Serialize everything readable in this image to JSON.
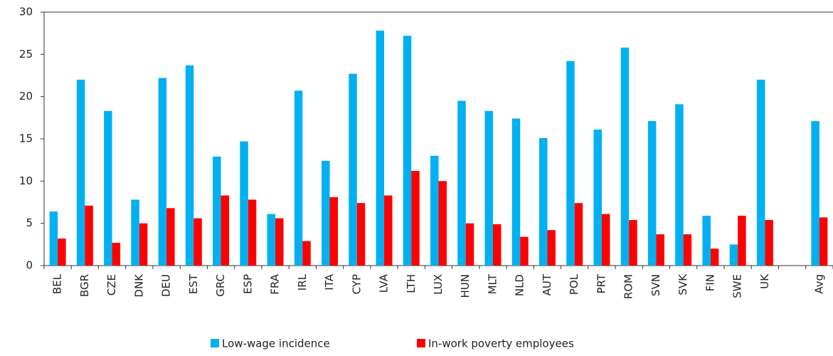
{
  "chart_data": {
    "type": "bar",
    "categories": [
      "BEL",
      "BGR",
      "CZE",
      "DNK",
      "DEU",
      "EST",
      "GRC",
      "ESP",
      "FRA",
      "IRL",
      "ITA",
      "CYP",
      "LVA",
      "LTH",
      "LUX",
      "HUN",
      "MLT",
      "NLD",
      "AUT",
      "POL",
      "PRT",
      "ROM",
      "SVN",
      "SVK",
      "FIN",
      "SWE",
      "UK",
      null,
      "Avg"
    ],
    "series": [
      {
        "name": "Low-wage incidence",
        "color": "#00b0f0",
        "values": [
          6.4,
          22,
          18.3,
          7.8,
          22.2,
          23.7,
          12.9,
          14.7,
          6.1,
          20.7,
          12.4,
          22.7,
          27.8,
          27.2,
          13.0,
          19.5,
          18.3,
          17.4,
          15.1,
          24.2,
          16.1,
          25.8,
          17.1,
          19.1,
          5.9,
          2.5,
          22.0,
          null,
          17.1
        ]
      },
      {
        "name": "In-work poverty employees",
        "color": "#ff0000",
        "values": [
          3.2,
          7.1,
          2.7,
          5.0,
          6.8,
          5.6,
          8.3,
          7.8,
          5.6,
          2.9,
          8.1,
          7.4,
          8.3,
          11.2,
          10.0,
          5.0,
          4.9,
          3.4,
          4.2,
          7.4,
          6.1,
          5.4,
          3.7,
          3.7,
          2.0,
          5.9,
          5.4,
          null,
          5.7
        ]
      }
    ],
    "ylim": [
      0,
      30
    ],
    "yticks": [
      0,
      5,
      10,
      15,
      20,
      25,
      30
    ],
    "grid": false,
    "legend": "bottom"
  }
}
